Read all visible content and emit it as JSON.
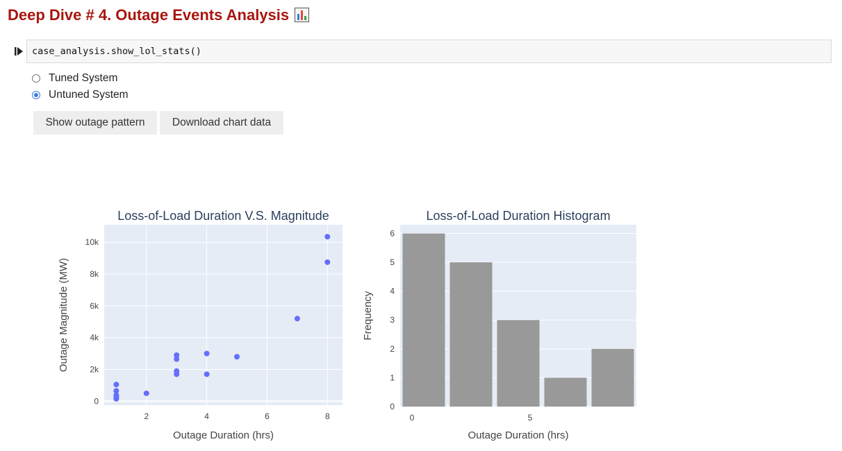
{
  "header": {
    "title": "Deep Dive # 4. Outage Events Analysis",
    "title_icon": "bar-chart-icon",
    "title_color": "#a8160f"
  },
  "cell": {
    "code": "case_analysis.show_lol_stats()",
    "run_icon": "run-cell-icon"
  },
  "radio": {
    "options": [
      {
        "label": "Tuned System",
        "checked": false
      },
      {
        "label": "Untuned System",
        "checked": true
      }
    ],
    "accent": "#3b7be0"
  },
  "buttons": {
    "show_pattern": "Show outage pattern",
    "download": "Download chart data"
  },
  "chart_data": [
    {
      "type": "scatter",
      "title": "Loss-of-Load Duration V.S. Magnitude",
      "xlabel": "Outage Duration (hrs)",
      "ylabel": "Outage Magnitude (MW)",
      "xlim": [
        0.6,
        8.5
      ],
      "ylim": [
        -250,
        11100
      ],
      "xticks": [
        {
          "v": 2,
          "label": "2"
        },
        {
          "v": 4,
          "label": "4"
        },
        {
          "v": 6,
          "label": "6"
        },
        {
          "v": 8,
          "label": "8"
        }
      ],
      "yticks": [
        {
          "v": 0,
          "label": "0"
        },
        {
          "v": 2000,
          "label": "2k"
        },
        {
          "v": 4000,
          "label": "4k"
        },
        {
          "v": 6000,
          "label": "6k"
        },
        {
          "v": 8000,
          "label": "8k"
        },
        {
          "v": 10000,
          "label": "10k"
        }
      ],
      "grid": true,
      "marker_color": "#636efa",
      "plot_bg": "#e5ecf6",
      "points": [
        {
          "x": 1,
          "y": 1050
        },
        {
          "x": 1,
          "y": 650
        },
        {
          "x": 1,
          "y": 380
        },
        {
          "x": 1,
          "y": 250
        },
        {
          "x": 1,
          "y": 150
        },
        {
          "x": 1,
          "y": 320
        },
        {
          "x": 2,
          "y": 500
        },
        {
          "x": 3,
          "y": 2900
        },
        {
          "x": 3,
          "y": 2650
        },
        {
          "x": 3,
          "y": 1900
        },
        {
          "x": 3,
          "y": 1700
        },
        {
          "x": 4,
          "y": 3000
        },
        {
          "x": 4,
          "y": 1700
        },
        {
          "x": 5,
          "y": 2800
        },
        {
          "x": 7,
          "y": 5200
        },
        {
          "x": 8,
          "y": 10350
        },
        {
          "x": 8,
          "y": 8750
        }
      ]
    },
    {
      "type": "bar",
      "title": "Loss-of-Load Duration Histogram",
      "xlabel": "Outage Duration (hrs)",
      "ylabel": "Frequency",
      "xlim": [
        -0.5,
        9.5
      ],
      "ylim": [
        0,
        6.3
      ],
      "xticks": [
        {
          "v": 0,
          "label": "0"
        },
        {
          "v": 5,
          "label": "5"
        }
      ],
      "yticks": [
        {
          "v": 0,
          "label": "0"
        },
        {
          "v": 1,
          "label": "1"
        },
        {
          "v": 2,
          "label": "2"
        },
        {
          "v": 3,
          "label": "3"
        },
        {
          "v": 4,
          "label": "4"
        },
        {
          "v": 5,
          "label": "5"
        },
        {
          "v": 6,
          "label": "6"
        }
      ],
      "grid": true,
      "bar_color": "#999999",
      "plot_bg": "#e5ecf6",
      "bins": [
        {
          "start": -0.5,
          "end": 1.5,
          "count": 6
        },
        {
          "start": 1.5,
          "end": 3.5,
          "count": 5
        },
        {
          "start": 3.5,
          "end": 5.5,
          "count": 3
        },
        {
          "start": 5.5,
          "end": 7.5,
          "count": 1
        },
        {
          "start": 7.5,
          "end": 9.5,
          "count": 2
        }
      ]
    }
  ]
}
